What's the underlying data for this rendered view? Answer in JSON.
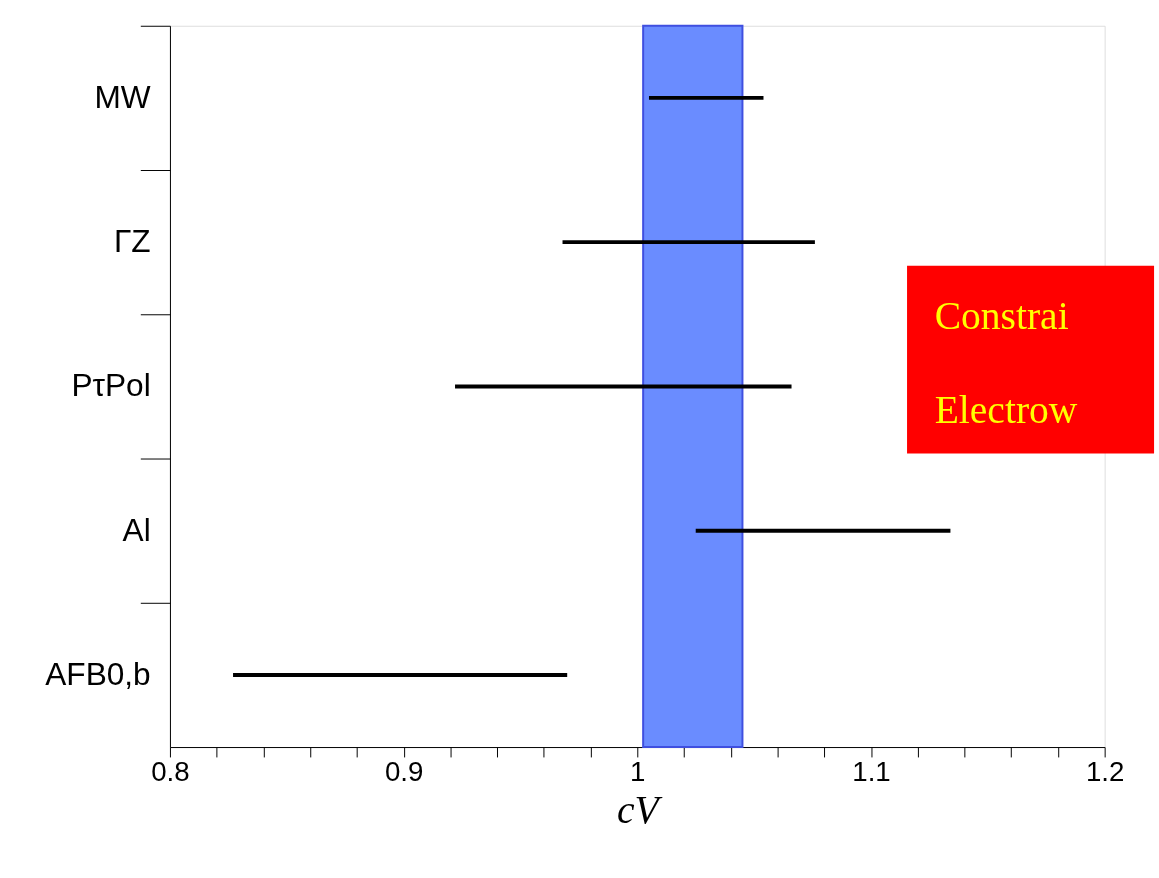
{
  "chart_data": {
    "type": "bar",
    "orientation": "horizontal",
    "xlabel": "cV",
    "categories": [
      "MW",
      "ΓZ",
      "PτPol",
      "Al",
      "AFB0,b"
    ],
    "base": [
      1.005,
      0.968,
      0.922,
      1.025,
      0.827
    ],
    "values": [
      0.049,
      0.108,
      0.144,
      0.109,
      0.143
    ],
    "color": "#000000",
    "xlim": [
      0.8,
      1.2
    ],
    "xticks": [
      0.8,
      {
        "value": 0.82,
        "label": null
      },
      {
        "value": 0.84,
        "label": null
      },
      {
        "value": 0.86,
        "label": null
      },
      {
        "value": 0.88,
        "label": null
      },
      0.9,
      {
        "value": 0.92,
        "label": null
      },
      {
        "value": 0.94,
        "label": null
      },
      {
        "value": 0.96,
        "label": null
      },
      {
        "value": 0.98,
        "label": null
      },
      1,
      {
        "value": 1.02,
        "label": null
      },
      {
        "value": 1.04,
        "label": null
      },
      {
        "value": 1.06,
        "label": null
      },
      {
        "value": 1.08,
        "label": null
      },
      1.1,
      {
        "value": 1.12,
        "label": null
      },
      {
        "value": 1.14,
        "label": null
      },
      {
        "value": 1.16,
        "label": null
      },
      {
        "value": 1.18,
        "label": null
      },
      1.2
    ],
    "bands": [
      {
        "axis": "x",
        "from": 1.0025,
        "to": 1.045,
        "color": "#6a8cff"
      }
    ],
    "annotations": [
      "Constrai",
      "Electrow"
    ]
  }
}
